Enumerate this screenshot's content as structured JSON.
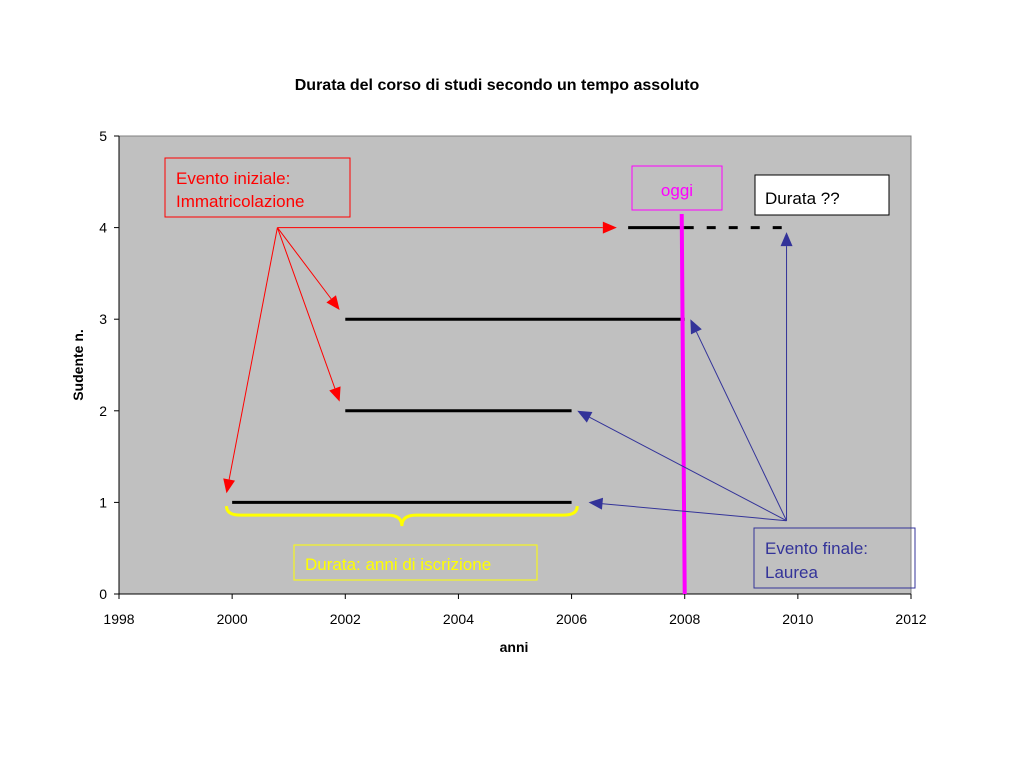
{
  "chart_data": {
    "type": "line",
    "title": "Durata del corso di studi secondo un tempo assoluto",
    "xlabel": "anni",
    "ylabel": "Sudente n.",
    "xlim": [
      1998,
      2012
    ],
    "ylim": [
      0,
      5
    ],
    "x_ticks": [
      "1998",
      "2000",
      "2002",
      "2004",
      "2006",
      "2008",
      "2010",
      "2012"
    ],
    "y_ticks": [
      "0",
      "1",
      "2",
      "3",
      "4",
      "5"
    ],
    "grid": false,
    "plot_background": "#c0c0c0",
    "series": [
      {
        "segments": [
          {
            "x": [
              2000,
              2006
            ],
            "y": [
              1,
              1
            ]
          }
        ]
      },
      {
        "segments": [
          {
            "x": [
              2002,
              2006
            ],
            "y": [
              2,
              2
            ]
          }
        ]
      },
      {
        "segments": [
          {
            "x": [
              2002,
              2008
            ],
            "y": [
              3,
              3
            ]
          }
        ]
      },
      {
        "segments": [
          {
            "x": [
              2007,
              2008
            ],
            "y": [
              4,
              4
            ]
          },
          {
            "x": [
              2008,
              2009.8
            ],
            "y": [
              4,
              4
            ],
            "style": "dashed"
          }
        ]
      }
    ],
    "today_line": {
      "x": 2008,
      "color": "#ff00ff",
      "label": "oggi"
    },
    "annotations": [
      {
        "text": [
          "Evento iniziale:",
          "Immatricolazione"
        ],
        "color": "#ff0000"
      },
      {
        "text": [
          "Evento finale:",
          "Laurea"
        ],
        "color": "#333399"
      },
      {
        "text": [
          "Durata ??"
        ],
        "color": "#000000"
      },
      {
        "text": [
          "Durata: anni di iscrizione"
        ],
        "color": "#ffff00"
      }
    ],
    "initial_event": {
      "from": [
        2000.8,
        4
      ],
      "to": [
        [
          2006.8,
          4
        ],
        [
          2001.9,
          3.1
        ],
        [
          2001.9,
          2.1
        ],
        [
          1999.9,
          1.1
        ]
      ]
    },
    "final_event": {
      "from": [
        2009.8,
        0.8
      ],
      "to": [
        [
          2009.8,
          3.95
        ],
        [
          2008.1,
          3.0
        ],
        [
          2006.1,
          2.0
        ],
        [
          2006.3,
          1.0
        ]
      ]
    },
    "brace": {
      "x": [
        1999.9,
        2006.1
      ],
      "y": 0.85,
      "color": "#ffff00"
    }
  }
}
